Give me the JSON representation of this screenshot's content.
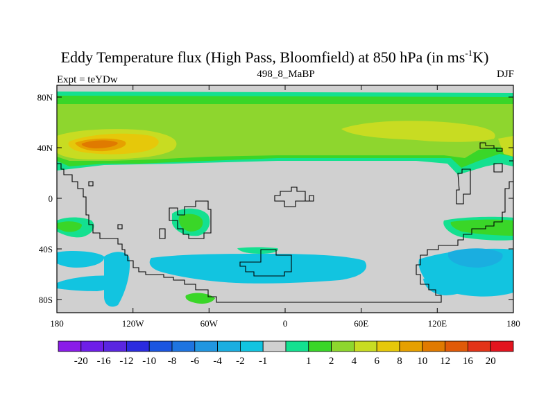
{
  "title_main": "Eddy Temperature flux (High Pass, Bloomfield) at 850 hPa (in ms",
  "title_exp": "-1",
  "title_end": "K)",
  "left_label": "Expt = teYDw",
  "center_label": "498_8_MaBP",
  "right_label": "DJF",
  "lat_ticks": [
    "80N",
    "40N",
    "0",
    "40S",
    "80S"
  ],
  "lon_ticks": [
    "180",
    "120W",
    "60W",
    "0",
    "60E",
    "120E",
    "180"
  ],
  "colorbar": {
    "colors": [
      "#8a1ce8",
      "#6e1ee8",
      "#5a26e0",
      "#2b2bdf",
      "#1a55e0",
      "#1e74e0",
      "#2196e0",
      "#1aaee0",
      "#12c4e0",
      "#d0d0d0",
      "#14e090",
      "#3ad628",
      "#8ed62e",
      "#c8dc22",
      "#e6c80a",
      "#e6a000",
      "#e07a00",
      "#e05a08",
      "#e33418",
      "#e3141e"
    ],
    "labels": [
      "-20",
      "-16",
      "-12",
      "-10",
      "-8",
      "-6",
      "-4",
      "-2",
      "-1",
      "1",
      "2",
      "4",
      "6",
      "8",
      "10",
      "12",
      "16",
      "20"
    ]
  },
  "colors": {
    "land_gray": "#d0d0d0",
    "green_light": "#8ed62e",
    "green": "#3ad628",
    "teal": "#14e090",
    "yellow": "#c8dc22",
    "orange": "#e6a000",
    "orange_dark": "#e07a00",
    "cyan": "#12c4e0",
    "blue_light": "#1aaee0"
  }
}
